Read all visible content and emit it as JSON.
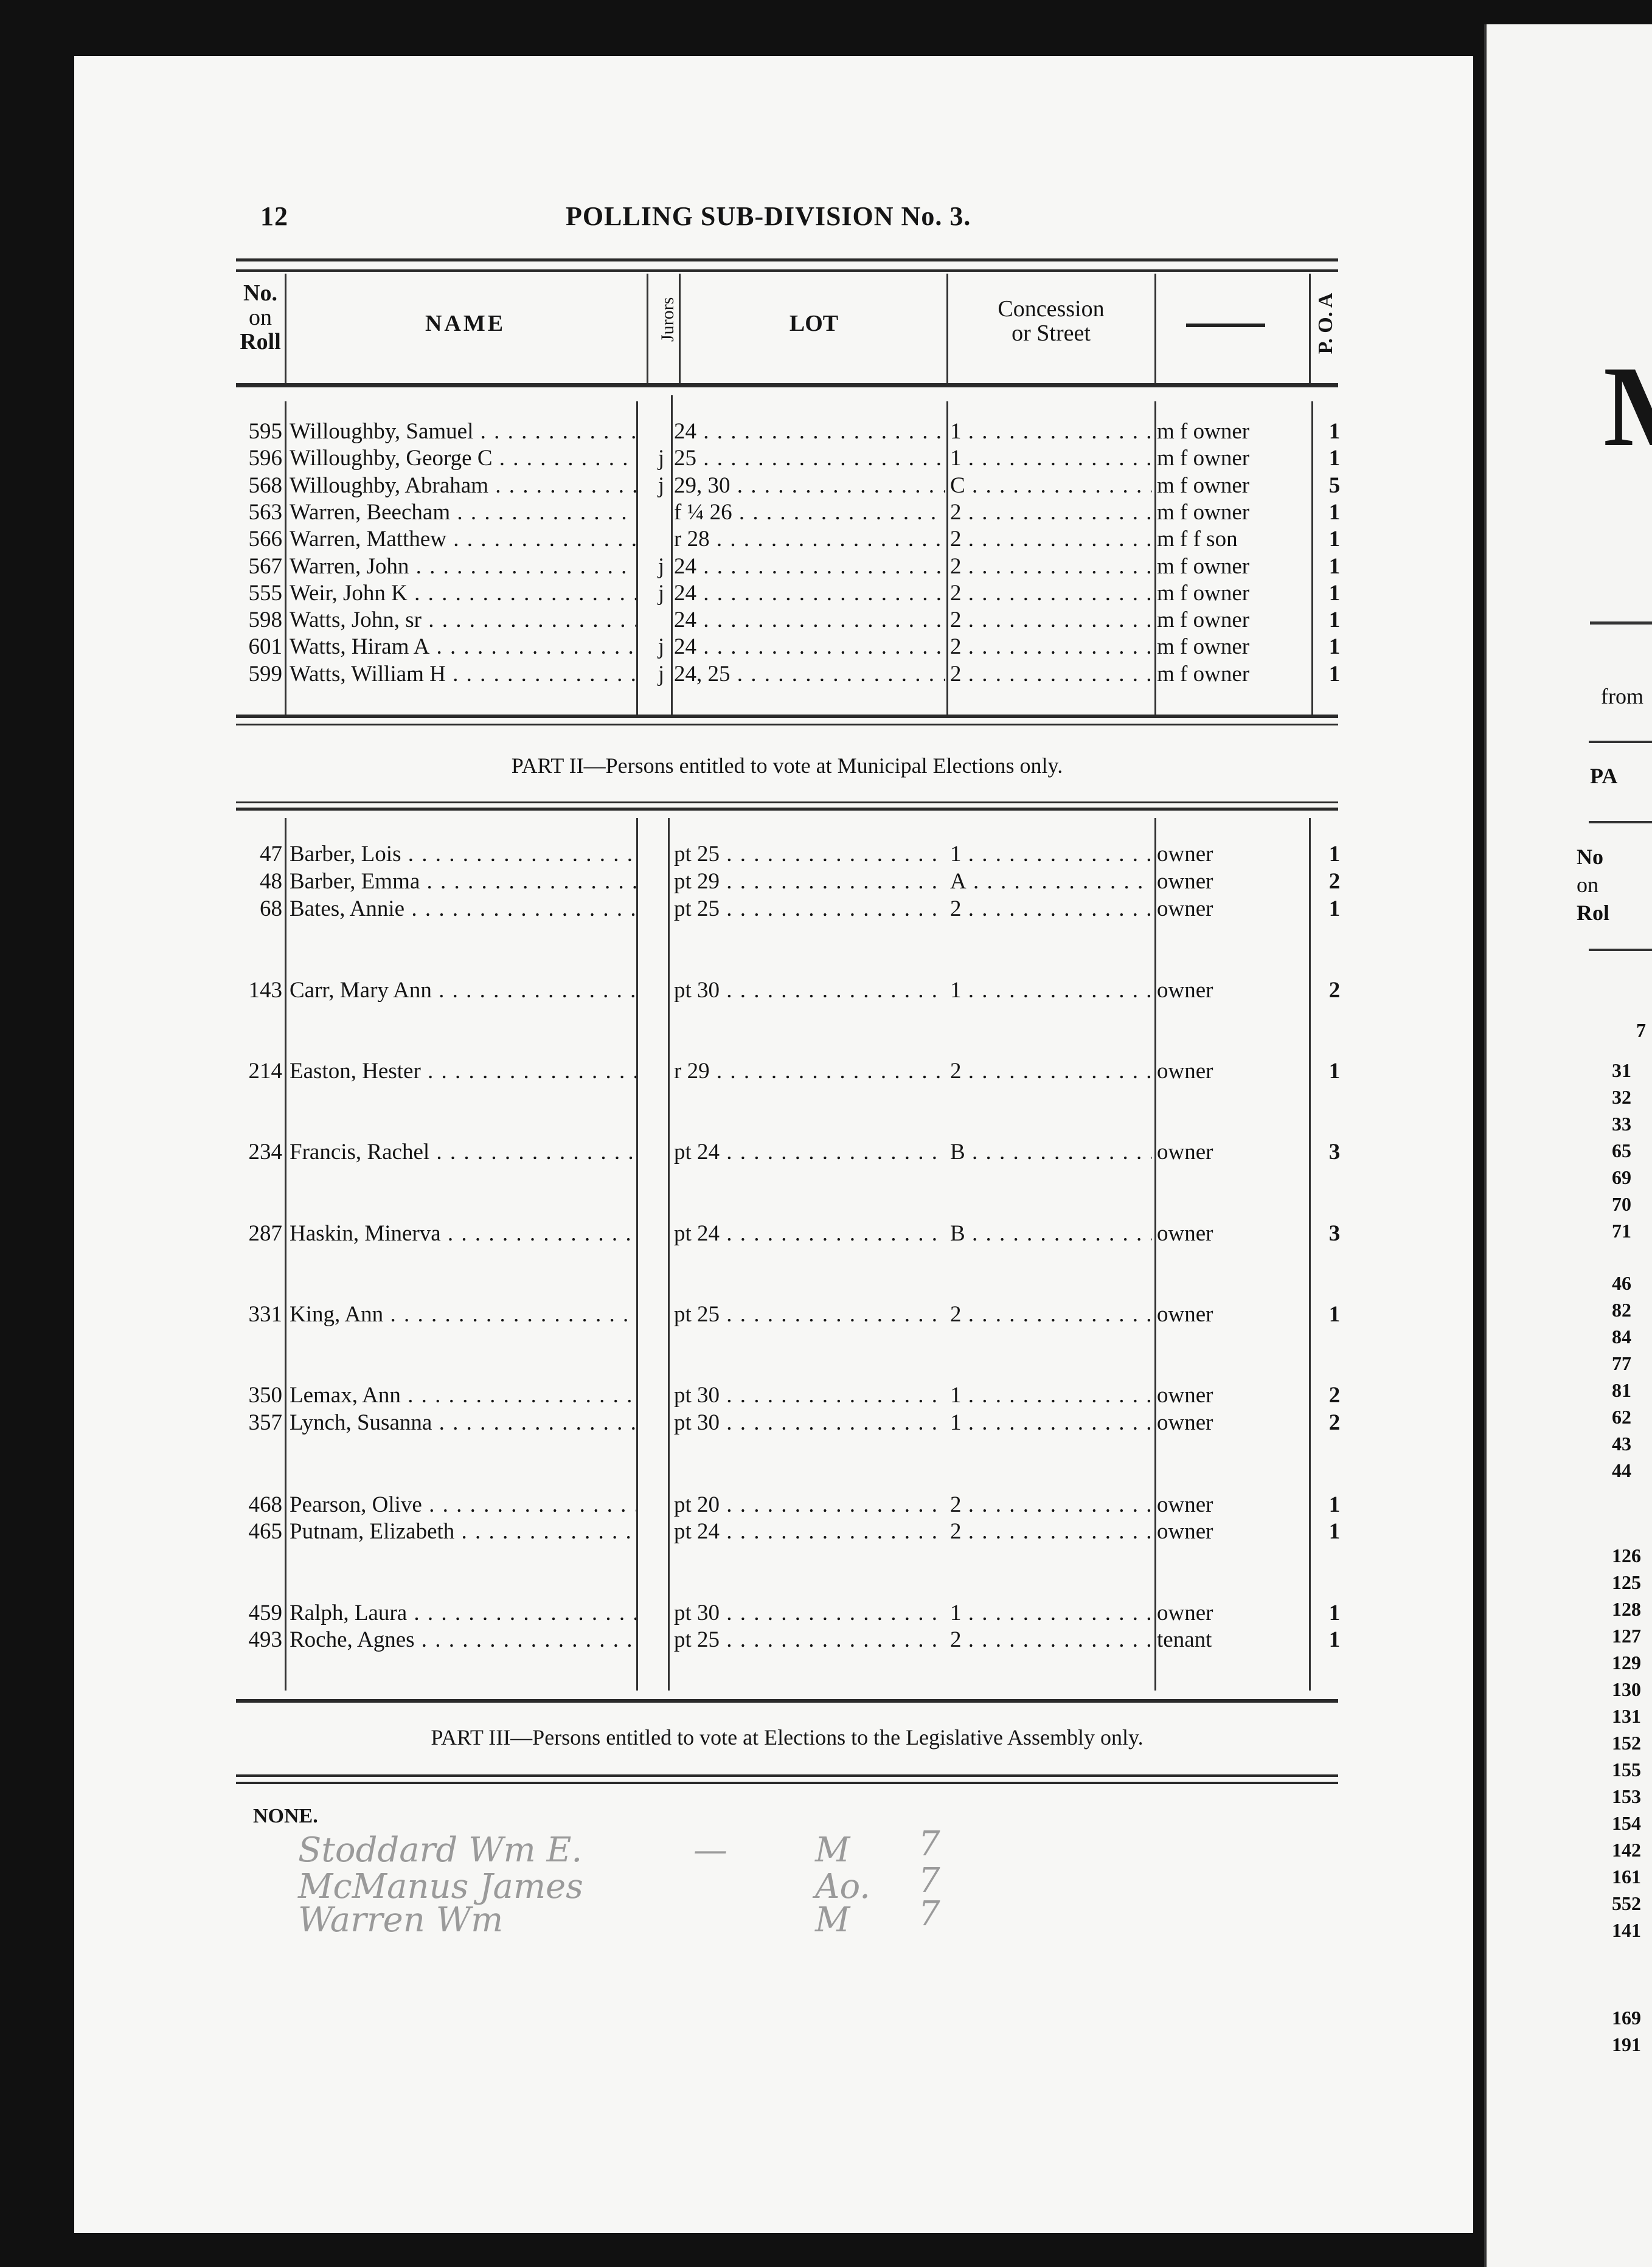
{
  "page_number": "12",
  "title": "POLLING SUB-DIVISION No. 3.",
  "columns": {
    "no": [
      "No.",
      "on",
      "Roll"
    ],
    "name": "NAME",
    "jurors": "Jurors",
    "lot": "LOT",
    "concession": [
      "Concession",
      "or Street"
    ],
    "status": "——",
    "poa": "P. O. A"
  },
  "part1_rows": [
    {
      "no": "595",
      "name": "Willoughby, Samuel",
      "juror": "",
      "lot": "24",
      "concession": "1",
      "status": "m f owner",
      "poa": "1"
    },
    {
      "no": "596",
      "name": "Willoughby, George C",
      "juror": "j",
      "lot": "25",
      "concession": "1",
      "status": "m f owner",
      "poa": "1"
    },
    {
      "no": "568",
      "name": "Willoughby, Abraham",
      "juror": "j",
      "lot": "29, 30",
      "concession": "C",
      "status": "m f owner",
      "poa": "5"
    },
    {
      "no": "563",
      "name": "Warren, Beecham",
      "juror": "",
      "lot": "f ¼ 26",
      "concession": "2",
      "status": "m f owner",
      "poa": "1"
    },
    {
      "no": "566",
      "name": "Warren, Matthew",
      "juror": "",
      "lot": "r 28",
      "concession": "2",
      "status": "m f f son",
      "poa": "1"
    },
    {
      "no": "567",
      "name": "Warren, John",
      "juror": "j",
      "lot": "24",
      "concession": "2",
      "status": "m f owner",
      "poa": "1"
    },
    {
      "no": "555",
      "name": "Weir, John K",
      "juror": "j",
      "lot": "24",
      "concession": "2",
      "status": "m f owner",
      "poa": "1"
    },
    {
      "no": "598",
      "name": "Watts, John, sr",
      "juror": "",
      "lot": "24",
      "concession": "2",
      "status": "m f owner",
      "poa": "1"
    },
    {
      "no": "601",
      "name": "Watts, Hiram A",
      "juror": "j",
      "lot": "24",
      "concession": "2",
      "status": "m f owner",
      "poa": "1"
    },
    {
      "no": "599",
      "name": "Watts, William H",
      "juror": "j",
      "lot": "24, 25",
      "concession": "2",
      "status": "m f owner",
      "poa": "1"
    }
  ],
  "part2_heading": "PART II—Persons entitled to vote at Municipal Elections only.",
  "part2_rows": [
    {
      "no": "47",
      "name": "Barber, Lois",
      "lot": "pt 25",
      "concession": "1",
      "status": "owner",
      "poa": "1"
    },
    {
      "no": "48",
      "name": "Barber, Emma",
      "lot": "pt 29",
      "concession": "A",
      "status": "owner",
      "poa": "2"
    },
    {
      "no": "68",
      "name": "Bates, Annie",
      "lot": "pt 25",
      "concession": "2",
      "status": "owner",
      "poa": "1"
    },
    {
      "no": "143",
      "name": "Carr, Mary Ann",
      "lot": "pt 30",
      "concession": "1",
      "status": "owner",
      "poa": "2"
    },
    {
      "no": "214",
      "name": "Easton, Hester",
      "lot": "r 29",
      "concession": "2",
      "status": "owner",
      "poa": "1"
    },
    {
      "no": "234",
      "name": "Francis, Rachel",
      "lot": "pt 24",
      "concession": "B",
      "status": "owner",
      "poa": "3"
    },
    {
      "no": "287",
      "name": "Haskin, Minerva",
      "lot": "pt 24",
      "concession": "B",
      "status": "owner",
      "poa": "3"
    },
    {
      "no": "331",
      "name": "King, Ann",
      "lot": "pt 25",
      "concession": "2",
      "status": "owner",
      "poa": "1"
    },
    {
      "no": "350",
      "name": "Lemax, Ann",
      "lot": "pt 30",
      "concession": "1",
      "status": "owner",
      "poa": "2"
    },
    {
      "no": "357",
      "name": "Lynch, Susanna",
      "lot": "pt 30",
      "concession": "1",
      "status": "owner",
      "poa": "2"
    },
    {
      "no": "468",
      "name": "Pearson, Olive",
      "lot": "pt 20",
      "concession": "2",
      "status": "owner",
      "poa": "1"
    },
    {
      "no": "465",
      "name": "Putnam, Elizabeth",
      "lot": "pt 24",
      "concession": "2",
      "status": "owner",
      "poa": "1"
    },
    {
      "no": "459",
      "name": "Ralph, Laura",
      "lot": "pt 30",
      "concession": "1",
      "status": "owner",
      "poa": "1"
    },
    {
      "no": "493",
      "name": "Roche, Agnes",
      "lot": "pt 25",
      "concession": "2",
      "status": "tenant",
      "poa": "1"
    }
  ],
  "part3_heading": "PART III—Persons entitled to vote at Elections to the Legislative Assembly only.",
  "part3_none": "NONE.",
  "handwritten": [
    {
      "name": "Stoddard Wm E.",
      "dash": "—",
      "mark": "M",
      "num": "7"
    },
    {
      "name": "McManus James",
      "dash": "",
      "mark": "Ao.",
      "num": "7"
    },
    {
      "name": "Warren Wm",
      "dash": "",
      "mark": "M",
      "num": "7"
    }
  ],
  "adjacent_page": {
    "big_letter": "M",
    "from": "from",
    "part": "PA",
    "header": [
      "No",
      "on",
      "Rol"
    ],
    "numbers": [
      "7",
      "31",
      "32",
      "33",
      "65",
      "69",
      "70",
      "71",
      "46",
      "82",
      "84",
      "77",
      "81",
      "62",
      "43",
      "44",
      "126",
      "125",
      "128",
      "127",
      "129",
      "130",
      "131",
      "152",
      "155",
      "153",
      "154",
      "142",
      "161",
      "552",
      "141",
      "169",
      "191"
    ]
  }
}
